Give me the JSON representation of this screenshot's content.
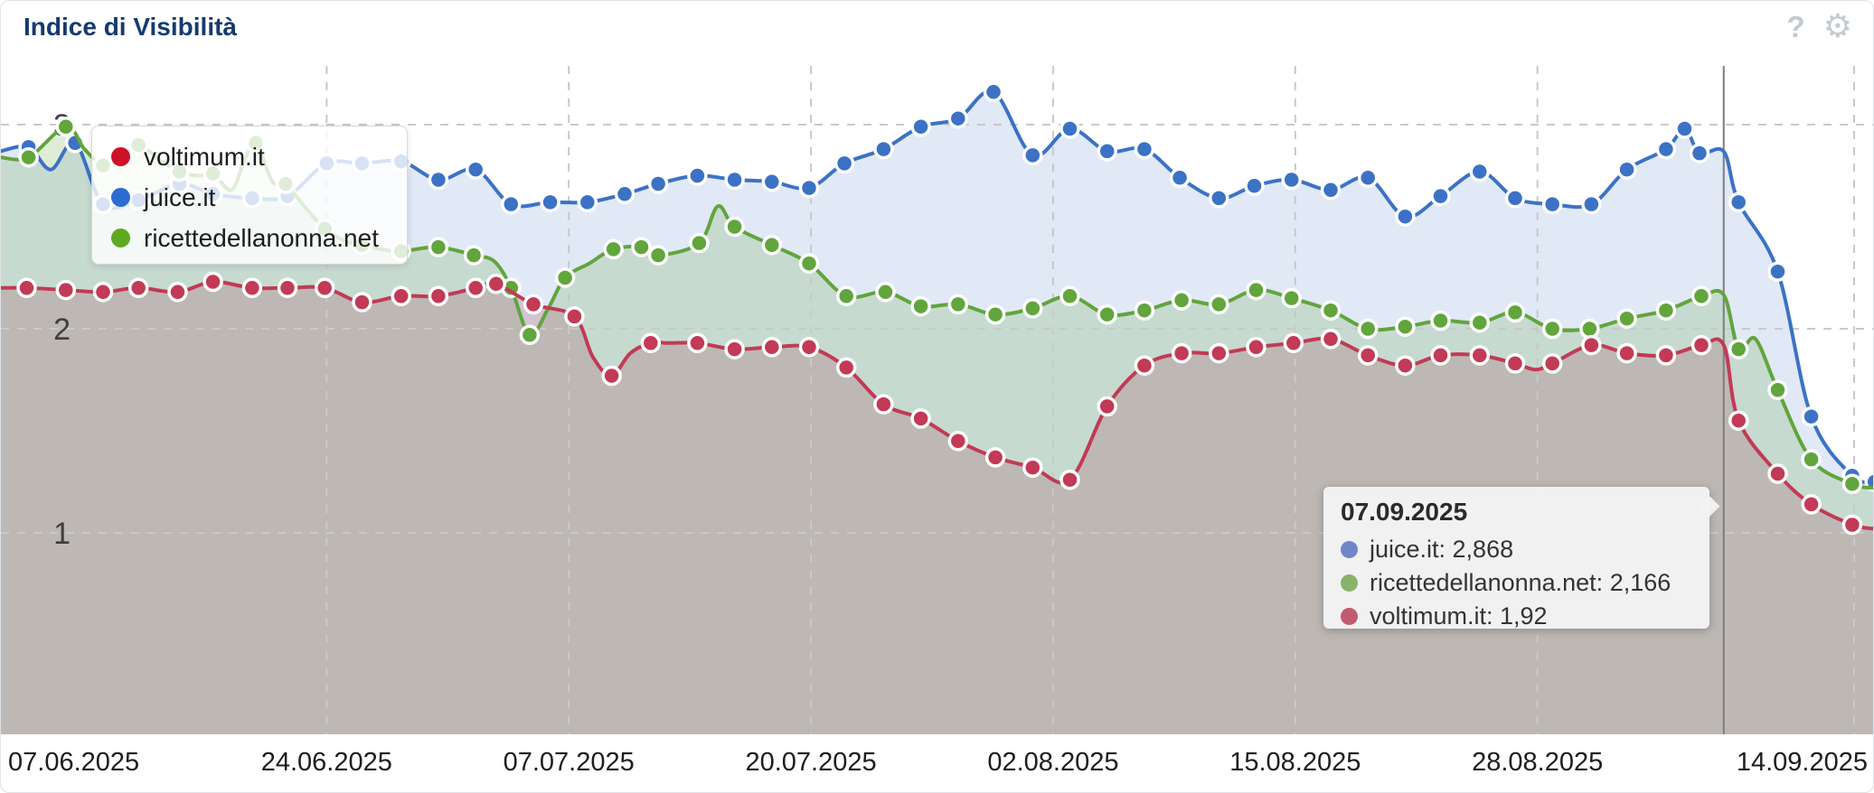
{
  "header": {
    "title": "Indice di Visibilità",
    "help_icon": "?",
    "settings_icon": "⚙"
  },
  "chart_data": {
    "type": "area",
    "title": "Indice di Visibilità",
    "grid": true,
    "y_axis": {
      "ticks": [
        3,
        2,
        1
      ],
      "min": 0,
      "max": 3.3
    },
    "x_axis": {
      "day_zero_date": "07.06.2025",
      "ticks": [
        {
          "label": "07.06.2025",
          "day": 0,
          "grid": false,
          "align": "start"
        },
        {
          "label": "24.06.2025",
          "day": 17,
          "grid": true,
          "align": "middle"
        },
        {
          "label": "07.07.2025",
          "day": 30,
          "grid": true,
          "align": "middle"
        },
        {
          "label": "20.07.2025",
          "day": 43,
          "grid": true,
          "align": "middle"
        },
        {
          "label": "02.08.2025",
          "day": 56,
          "grid": true,
          "align": "middle"
        },
        {
          "label": "15.08.2025",
          "day": 69,
          "grid": true,
          "align": "middle"
        },
        {
          "label": "28.08.2025",
          "day": 82,
          "grid": true,
          "align": "middle"
        },
        {
          "label": "14.09.2025",
          "day": 99,
          "grid": true,
          "align": "end"
        }
      ]
    },
    "series": [
      {
        "name": "juice.it",
        "color": "#3b72c6",
        "fill": "rgba(61,111,200,0.155)",
        "points": [
          [
            -0.5,
            2.87,
            0
          ],
          [
            1.0,
            2.89,
            1
          ],
          [
            2.2,
            2.78,
            0
          ],
          [
            3.5,
            2.91,
            1
          ],
          [
            5.0,
            2.61,
            1
          ],
          [
            6.9,
            2.63,
            1
          ],
          [
            9.1,
            2.71,
            1
          ],
          [
            10.9,
            2.66,
            1
          ],
          [
            13.0,
            2.64,
            1
          ],
          [
            14.9,
            2.65,
            1
          ],
          [
            17.0,
            2.81,
            1
          ],
          [
            18.9,
            2.81,
            1
          ],
          [
            21.0,
            2.82,
            1
          ],
          [
            23.0,
            2.73,
            1
          ],
          [
            25.0,
            2.78,
            1
          ],
          [
            26.9,
            2.61,
            1
          ],
          [
            29.0,
            2.62,
            1
          ],
          [
            31.0,
            2.62,
            1
          ],
          [
            33.0,
            2.66,
            1
          ],
          [
            34.8,
            2.71,
            1
          ],
          [
            36.9,
            2.75,
            1
          ],
          [
            38.9,
            2.73,
            1
          ],
          [
            40.9,
            2.72,
            1
          ],
          [
            42.9,
            2.69,
            1
          ],
          [
            44.8,
            2.81,
            1
          ],
          [
            46.9,
            2.88,
            1
          ],
          [
            48.9,
            2.99,
            1
          ],
          [
            50.9,
            3.03,
            1
          ],
          [
            52.8,
            3.16,
            1
          ],
          [
            54.9,
            2.85,
            1
          ],
          [
            56.9,
            2.98,
            1
          ],
          [
            58.9,
            2.87,
            1
          ],
          [
            60.9,
            2.88,
            1
          ],
          [
            62.8,
            2.74,
            1
          ],
          [
            64.9,
            2.64,
            1
          ],
          [
            66.8,
            2.7,
            1
          ],
          [
            68.8,
            2.73,
            1
          ],
          [
            70.9,
            2.68,
            1
          ],
          [
            72.9,
            2.74,
            1
          ],
          [
            74.9,
            2.55,
            1
          ],
          [
            76.8,
            2.65,
            1
          ],
          [
            78.9,
            2.77,
            1
          ],
          [
            80.8,
            2.64,
            1
          ],
          [
            82.8,
            2.61,
            1
          ],
          [
            84.9,
            2.61,
            1
          ],
          [
            86.8,
            2.78,
            1
          ],
          [
            88.9,
            2.88,
            1
          ],
          [
            89.9,
            2.98,
            1
          ],
          [
            90.7,
            2.86,
            1
          ],
          [
            92.0,
            2.868,
            0
          ],
          [
            92.8,
            2.62,
            1
          ],
          [
            94.9,
            2.28,
            1
          ],
          [
            96.7,
            1.57,
            1
          ],
          [
            98.9,
            1.28,
            1
          ],
          [
            100.1,
            1.25,
            1
          ]
        ]
      },
      {
        "name": "ricettedellanonna.net",
        "color": "#61a53c",
        "fill": "rgba(97,163,59,0.2)",
        "points": [
          [
            -0.5,
            2.84,
            0
          ],
          [
            1.0,
            2.84,
            1
          ],
          [
            3.0,
            2.99,
            1
          ],
          [
            4.0,
            2.88,
            0
          ],
          [
            5.0,
            2.8,
            1
          ],
          [
            5.9,
            2.83,
            0
          ],
          [
            6.9,
            2.9,
            1
          ],
          [
            8.0,
            2.83,
            0
          ],
          [
            9.1,
            2.77,
            1
          ],
          [
            10.1,
            2.75,
            0
          ],
          [
            10.9,
            2.76,
            1
          ],
          [
            11.9,
            2.68,
            0
          ],
          [
            12.6,
            2.83,
            0
          ],
          [
            13.2,
            2.91,
            1
          ],
          [
            14.1,
            2.72,
            0
          ],
          [
            14.8,
            2.71,
            1
          ],
          [
            15.8,
            2.6,
            0
          ],
          [
            16.9,
            2.49,
            1
          ],
          [
            18.0,
            2.43,
            0
          ],
          [
            18.9,
            2.41,
            1
          ],
          [
            19.9,
            2.39,
            0
          ],
          [
            21.0,
            2.38,
            1
          ],
          [
            23.0,
            2.4,
            1
          ],
          [
            24.9,
            2.36,
            1
          ],
          [
            26.0,
            2.33,
            0
          ],
          [
            26.9,
            2.2,
            1
          ],
          [
            27.9,
            1.97,
            1
          ],
          [
            28.9,
            2.1,
            0
          ],
          [
            29.8,
            2.25,
            1
          ],
          [
            31.1,
            2.32,
            0
          ],
          [
            32.4,
            2.39,
            1
          ],
          [
            33.9,
            2.4,
            1
          ],
          [
            34.8,
            2.36,
            1
          ],
          [
            37.0,
            2.42,
            1
          ],
          [
            38.0,
            2.6,
            0
          ],
          [
            38.9,
            2.5,
            1
          ],
          [
            40.9,
            2.41,
            1
          ],
          [
            42.9,
            2.32,
            1
          ],
          [
            44.9,
            2.16,
            1
          ],
          [
            47.0,
            2.18,
            1
          ],
          [
            48.9,
            2.11,
            1
          ],
          [
            50.9,
            2.12,
            1
          ],
          [
            52.9,
            2.07,
            1
          ],
          [
            54.9,
            2.1,
            1
          ],
          [
            56.9,
            2.16,
            1
          ],
          [
            58.9,
            2.07,
            1
          ],
          [
            60.9,
            2.09,
            1
          ],
          [
            62.9,
            2.14,
            1
          ],
          [
            64.9,
            2.12,
            1
          ],
          [
            66.9,
            2.19,
            1
          ],
          [
            68.8,
            2.15,
            1
          ],
          [
            70.9,
            2.09,
            1
          ],
          [
            72.9,
            2.0,
            1
          ],
          [
            74.9,
            2.01,
            1
          ],
          [
            76.8,
            2.04,
            1
          ],
          [
            78.9,
            2.03,
            1
          ],
          [
            80.8,
            2.08,
            1
          ],
          [
            82.8,
            2.0,
            1
          ],
          [
            84.8,
            2.0,
            1
          ],
          [
            86.8,
            2.05,
            1
          ],
          [
            88.9,
            2.09,
            1
          ],
          [
            90.8,
            2.16,
            1
          ],
          [
            92.0,
            2.166,
            0
          ],
          [
            92.8,
            1.9,
            1
          ],
          [
            93.7,
            1.95,
            0
          ],
          [
            94.9,
            1.7,
            1
          ],
          [
            96.7,
            1.36,
            1
          ],
          [
            98.9,
            1.24,
            1
          ],
          [
            100.1,
            1.22,
            0
          ]
        ]
      },
      {
        "name": "voltimum.it",
        "color": "#c23a55",
        "fill": "rgba(155,75,85,0.23)",
        "points": [
          [
            -0.5,
            2.2,
            0
          ],
          [
            0.9,
            2.2,
            1
          ],
          [
            3.0,
            2.19,
            1
          ],
          [
            5.0,
            2.18,
            1
          ],
          [
            6.9,
            2.2,
            1
          ],
          [
            9.0,
            2.18,
            1
          ],
          [
            10.9,
            2.23,
            1
          ],
          [
            13.0,
            2.2,
            1
          ],
          [
            14.9,
            2.2,
            1
          ],
          [
            16.9,
            2.2,
            1
          ],
          [
            18.9,
            2.13,
            1
          ],
          [
            21.0,
            2.16,
            1
          ],
          [
            23.0,
            2.16,
            1
          ],
          [
            25.0,
            2.2,
            1
          ],
          [
            26.1,
            2.22,
            1
          ],
          [
            28.1,
            2.12,
            1
          ],
          [
            30.3,
            2.06,
            1
          ],
          [
            31.3,
            1.86,
            0
          ],
          [
            32.3,
            1.77,
            1
          ],
          [
            33.3,
            1.88,
            0
          ],
          [
            34.4,
            1.93,
            1
          ],
          [
            35.4,
            1.93,
            0
          ],
          [
            36.9,
            1.93,
            1
          ],
          [
            38.9,
            1.9,
            1
          ],
          [
            40.9,
            1.91,
            1
          ],
          [
            42.9,
            1.91,
            1
          ],
          [
            44.9,
            1.81,
            1
          ],
          [
            46.9,
            1.63,
            1
          ],
          [
            48.9,
            1.56,
            1
          ],
          [
            50.9,
            1.45,
            1
          ],
          [
            52.9,
            1.37,
            1
          ],
          [
            54.9,
            1.32,
            1
          ],
          [
            56.9,
            1.26,
            1
          ],
          [
            58.9,
            1.62,
            1
          ],
          [
            60.9,
            1.82,
            1
          ],
          [
            62.9,
            1.88,
            1
          ],
          [
            64.9,
            1.88,
            1
          ],
          [
            66.9,
            1.91,
            1
          ],
          [
            68.9,
            1.93,
            1
          ],
          [
            70.9,
            1.95,
            1
          ],
          [
            72.9,
            1.87,
            1
          ],
          [
            74.9,
            1.82,
            1
          ],
          [
            76.8,
            1.87,
            1
          ],
          [
            78.9,
            1.87,
            1
          ],
          [
            80.8,
            1.83,
            1
          ],
          [
            81.9,
            1.8,
            0
          ],
          [
            82.8,
            1.83,
            1
          ],
          [
            84.9,
            1.92,
            1
          ],
          [
            86.8,
            1.88,
            1
          ],
          [
            88.9,
            1.87,
            1
          ],
          [
            90.8,
            1.92,
            1
          ],
          [
            92.0,
            1.92,
            0
          ],
          [
            92.8,
            1.55,
            1
          ],
          [
            94.9,
            1.29,
            1
          ],
          [
            96.7,
            1.14,
            1
          ],
          [
            98.9,
            1.04,
            1
          ],
          [
            100.1,
            1.02,
            0
          ]
        ]
      }
    ],
    "legend_items": [
      {
        "label": "voltimum.it",
        "color": "#ce1126"
      },
      {
        "label": "juice.it",
        "color": "#2d6cd2"
      },
      {
        "label": "ricettedellanonna.net",
        "color": "#5fa821"
      }
    ],
    "cursor": {
      "day": 92,
      "date": "07.09.2025"
    },
    "tooltip": {
      "title": "07.09.2025",
      "rows": [
        {
          "label": "juice.it",
          "value": "2,868",
          "color": "#6e87c8"
        },
        {
          "label": "ricettedellanonna.net",
          "value": "2,166",
          "color": "#87b469"
        },
        {
          "label": "voltimum.it",
          "value": "1,92",
          "color": "#c35a6e"
        }
      ]
    }
  }
}
